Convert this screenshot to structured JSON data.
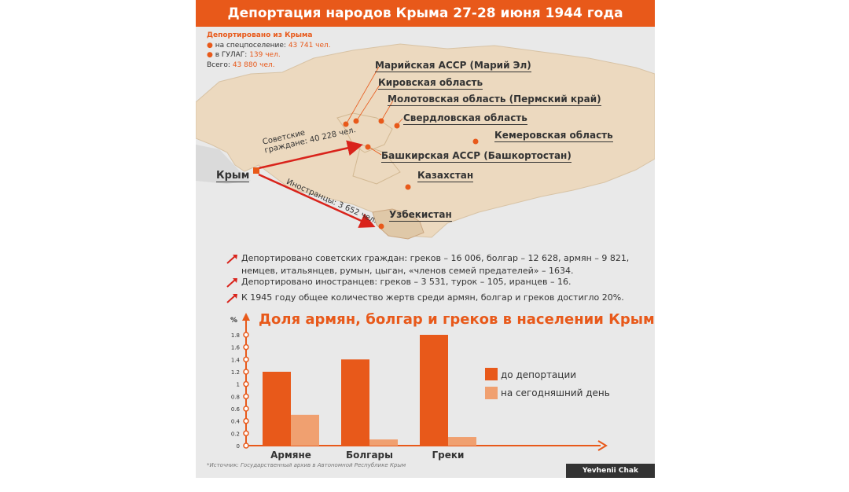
{
  "title": "Депортация народов Крыма 27-28 июня 1944 года",
  "stats": {
    "heading": "Депортировано из Крыма",
    "special_label": "на спецпоселение:",
    "special_value": "43 741 чел.",
    "gulag_label": "в ГУЛАГ:",
    "gulag_value": "139 чел.",
    "total_label": "Всего:",
    "total_value": "43 880 чел."
  },
  "map": {
    "origin": "Крым",
    "destinations": [
      "Марийская АССР (Марий Эл)",
      "Кировская область",
      "Молотовская область (Пермский край)",
      "Свердловская область",
      "Кемеровская область",
      "Башкирская АССР (Башкортостан)",
      "Казахстан",
      "Узбекистан"
    ],
    "arrow_soviet": "Советские граждане: 40 228 чел.",
    "arrow_soviet_line1": "Советские",
    "arrow_soviet_line2": "граждане: 40 228 чел.",
    "arrow_foreign": "Иностранцы: 3 652 чел."
  },
  "facts": [
    "Депортировано советских граждан: греков – 16 006, болгар – 12 628, армян – 9 821, немцев, итальянцев, румын, цыган, «членов семей предателей» – 1634.",
    "Депортировано иностранцев: греков – 3 531, турок – 105, иранцев – 16.",
    "К 1945 году общее количество жертв среди армян, болгар и греков достигло 20%."
  ],
  "colors": {
    "accent": "#e8591a",
    "light": "#f0a070",
    "map_fill": "#ecd9bf",
    "background": "#e9e9e9"
  },
  "chart_data": {
    "type": "bar",
    "title": "Доля армян, болгар и греков в населении Крыма",
    "ylabel": "%",
    "categories": [
      "Армяне",
      "Болгары",
      "Греки"
    ],
    "ylim": [
      0,
      1.8
    ],
    "yticks": [
      "0",
      "0.2",
      "0.4",
      "0.6",
      "0.8",
      "1",
      "1.2",
      "1.4",
      "1.6",
      "1.8"
    ],
    "series": [
      {
        "name": "до депортации",
        "values": [
          1.2,
          1.4,
          1.8
        ],
        "color": "#e8591a"
      },
      {
        "name": "на сегодняшний день",
        "values": [
          0.5,
          0.1,
          0.14
        ],
        "color": "#f0a070"
      }
    ],
    "legend_position": "right"
  },
  "source": "*Источник: Государственный архив в Автономной Республике Крым",
  "credit": "Yevhenii Chak (RFE/RL)"
}
